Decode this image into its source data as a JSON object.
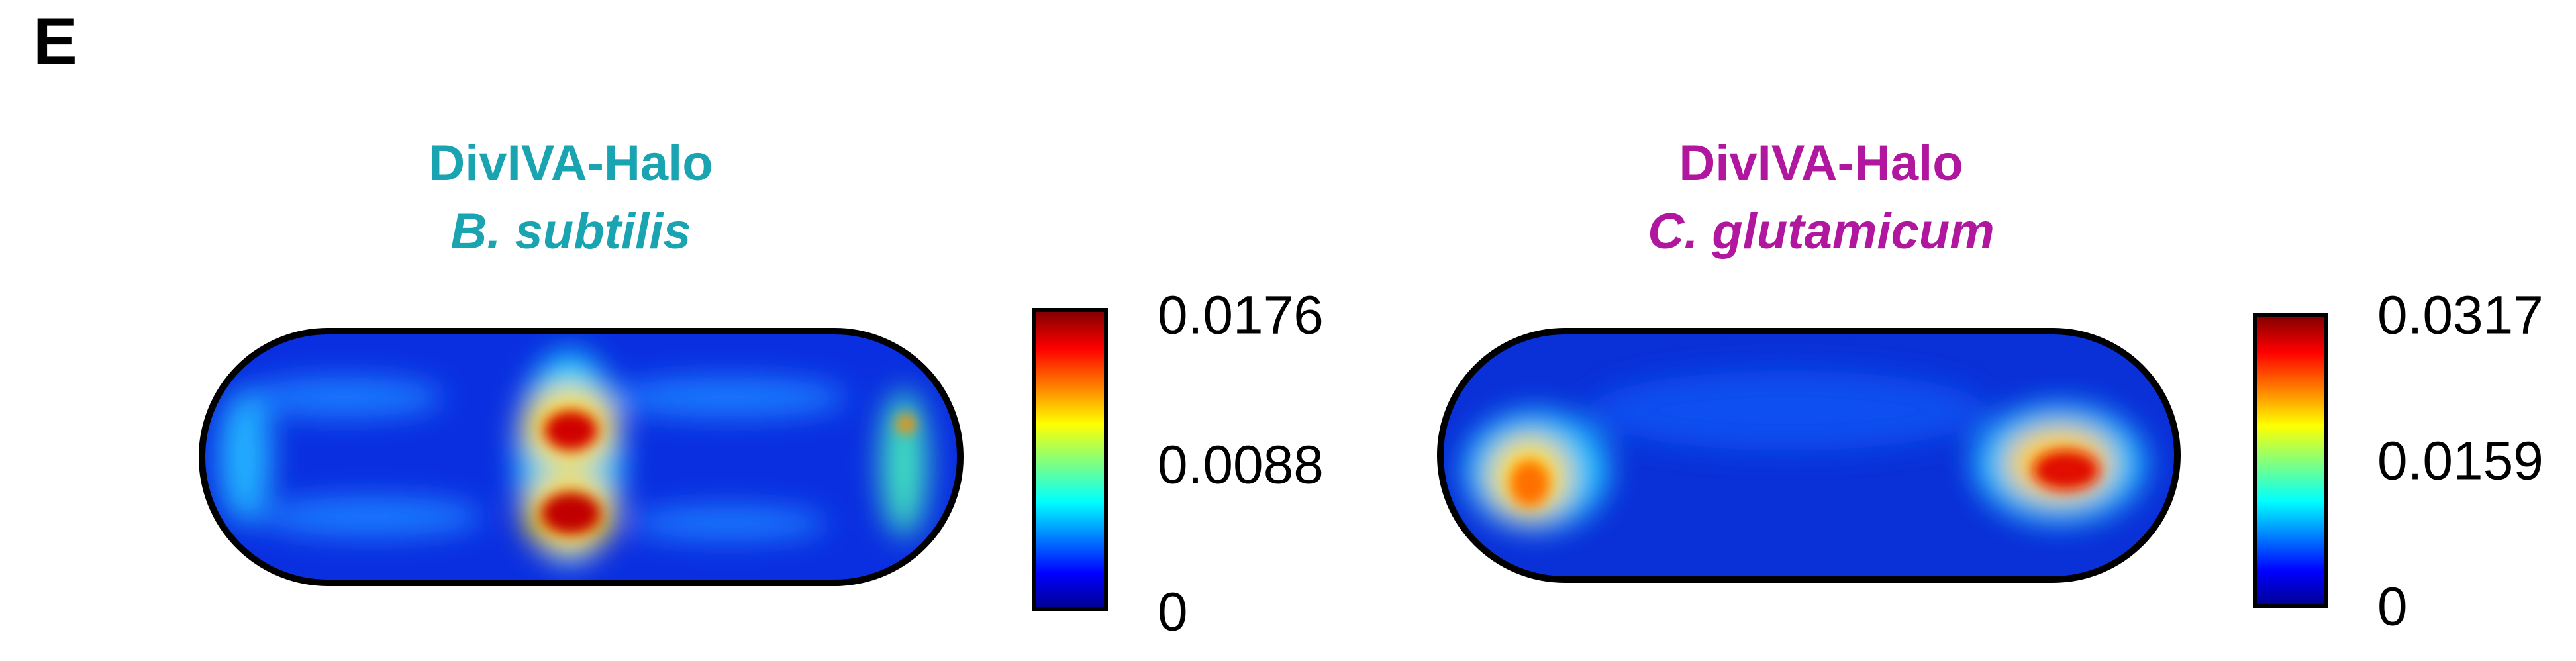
{
  "panel_label": "E",
  "panels": [
    {
      "title": "DivIVA-Halo",
      "organism": "B. subtilis",
      "colorbar": {
        "ticks": [
          "0.0176",
          "0.0088",
          "0"
        ]
      }
    },
    {
      "title": "DivIVA-Halo",
      "organism": "C. glutamicum",
      "colorbar": {
        "ticks": [
          "0.0317",
          "0.0159",
          "0"
        ]
      }
    }
  ]
}
